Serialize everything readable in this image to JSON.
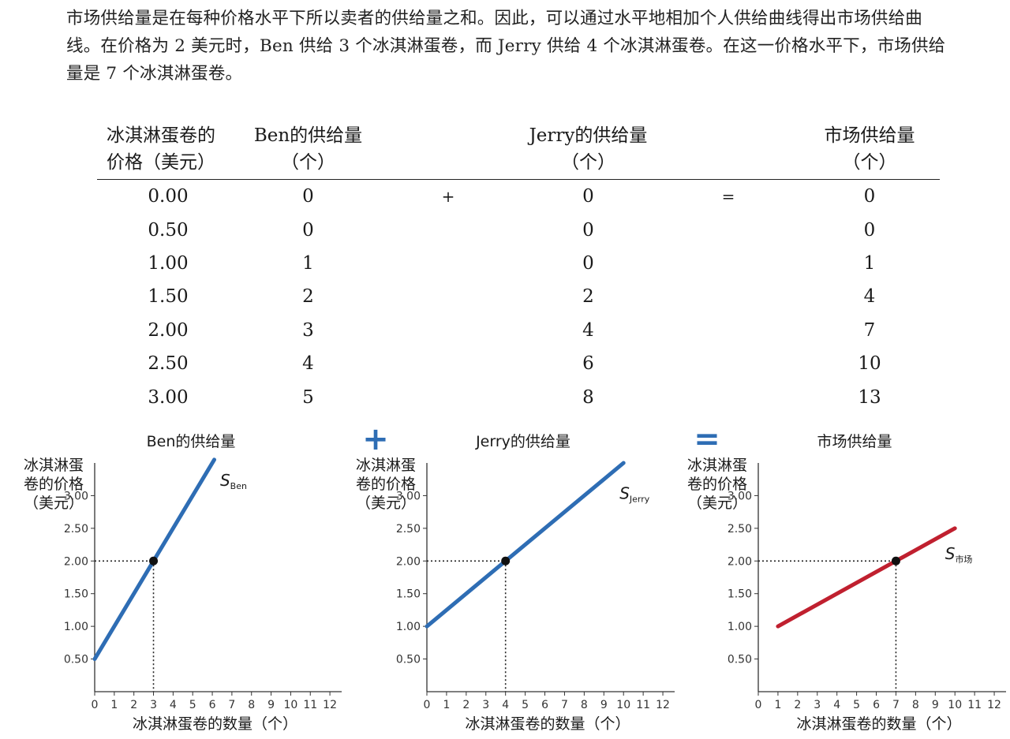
{
  "intro_text": "市场供给量是在每种价格水平下所以卖者的供给量之和。因此，可以通过水平地相加个人供给曲线得出市场供给曲线。在价格为 2 美元时，Ben 供给 3 个冰淇淋蛋卷，而 Jerry 供给 4 个冰淇淋蛋卷。在这一价格水平下，市场供给量是 7 个冰淇淋蛋卷。",
  "table": {
    "headers": {
      "price": [
        "冰淇淋蛋卷的",
        "价格（美元）"
      ],
      "ben": [
        "Ben的供给量",
        "（个）"
      ],
      "jerry": [
        "Jerry的供给量",
        "（个）"
      ],
      "market": [
        "市场供给量",
        "（个）"
      ]
    },
    "plus": "+",
    "equals": "=",
    "rows": [
      [
        "0.00",
        "0",
        "0",
        "0"
      ],
      [
        "0.50",
        "0",
        "0",
        "0"
      ],
      [
        "1.00",
        "1",
        "0",
        "1"
      ],
      [
        "1.50",
        "2",
        "2",
        "4"
      ],
      [
        "2.00",
        "3",
        "4",
        "7"
      ],
      [
        "2.50",
        "4",
        "6",
        "10"
      ],
      [
        "3.00",
        "5",
        "8",
        "13"
      ]
    ]
  },
  "operators": {
    "plus": "+",
    "equals": "="
  },
  "colors": {
    "blue": "#2e6db4",
    "red": "#c0202f",
    "axis": "#333333"
  },
  "chart_data": [
    {
      "type": "line",
      "title": "Ben的供给量",
      "ylabel": [
        "冰淇淋蛋",
        "卷的价格",
        "（美元）"
      ],
      "xlabel": "冰淇淋蛋卷的数量（个）",
      "xlim": [
        0,
        12.6
      ],
      "ylim": [
        0,
        3.5
      ],
      "xticks": [
        "0",
        "1",
        "2",
        "3",
        "4",
        "5",
        "6",
        "7",
        "8",
        "9",
        "10",
        "11",
        "12"
      ],
      "yticks": [
        "0.50",
        "1.00",
        "1.50",
        "2.00",
        "2.50",
        "3.00"
      ],
      "series": [
        {
          "name": "S",
          "subscript": "Ben",
          "color": "#2e6db4",
          "x": [
            0,
            6.1
          ],
          "y": [
            0.5,
            3.55
          ]
        }
      ],
      "highlight": {
        "x": 3,
        "y": 2.0
      }
    },
    {
      "type": "line",
      "title": "Jerry的供给量",
      "ylabel": [
        "冰淇淋蛋",
        "卷的价格",
        "（美元）"
      ],
      "xlabel": "冰淇淋蛋卷的数量（个）",
      "xlim": [
        0,
        12.6
      ],
      "ylim": [
        0,
        3.5
      ],
      "xticks": [
        "0",
        "1",
        "2",
        "3",
        "4",
        "5",
        "6",
        "7",
        "8",
        "9",
        "10",
        "11",
        "12"
      ],
      "yticks": [
        "0.50",
        "1.00",
        "1.50",
        "2.00",
        "2.50",
        "3.00"
      ],
      "series": [
        {
          "name": "S",
          "subscript": "Jerry",
          "color": "#2e6db4",
          "x": [
            0,
            10
          ],
          "y": [
            1.0,
            3.5
          ]
        }
      ],
      "highlight": {
        "x": 4,
        "y": 2.0
      }
    },
    {
      "type": "line",
      "title": "市场供给量",
      "ylabel": [
        "冰淇淋蛋",
        "卷的价格",
        "（美元）"
      ],
      "xlabel": "冰淇淋蛋卷的数量（个）",
      "xlim": [
        0,
        12.6
      ],
      "ylim": [
        0,
        3.5
      ],
      "xticks": [
        "0",
        "1",
        "2",
        "3",
        "4",
        "5",
        "6",
        "7",
        "8",
        "9",
        "10",
        "11",
        "12"
      ],
      "yticks": [
        "0.50",
        "1.00",
        "1.50",
        "2.00",
        "2.50",
        "3.00"
      ],
      "series": [
        {
          "name": "S",
          "subscript": "市场",
          "color": "#c0202f",
          "x": [
            1,
            10
          ],
          "y": [
            1.0,
            2.5
          ]
        }
      ],
      "highlight": {
        "x": 7,
        "y": 2.0
      }
    }
  ]
}
